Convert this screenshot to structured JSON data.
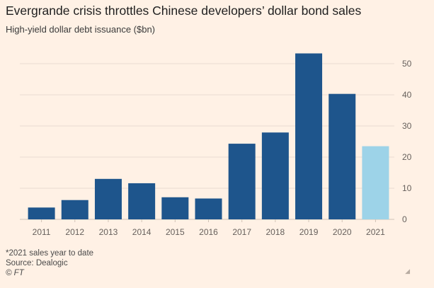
{
  "header": {
    "title": "Evergrande crisis throttles Chinese developers’ dollar bond sales",
    "subtitle": "High-yield dollar debt issuance ($bn)"
  },
  "footer": {
    "note": "*2021 sales year to date",
    "source": "Source: Dealogic",
    "credit": "© FT"
  },
  "colors": {
    "background": "#fff1e5",
    "bar": "#1e558c",
    "bar_highlight": "#9dd3e8",
    "grid": "#e9dcd1",
    "tick_text": "#66605c"
  },
  "chart_data": {
    "type": "bar",
    "title": "Evergrande crisis throttles Chinese developers’ dollar bond sales",
    "subtitle": "High-yield dollar debt issuance ($bn)",
    "categories": [
      "2011",
      "2012",
      "2013",
      "2014",
      "2015",
      "2016",
      "2017",
      "2018",
      "2019",
      "2020",
      "2021"
    ],
    "values": [
      3.8,
      6.2,
      13.0,
      11.6,
      7.1,
      6.7,
      24.3,
      27.9,
      53.3,
      40.3,
      23.5
    ],
    "highlight_index": 10,
    "yticks": [
      0,
      10,
      20,
      30,
      40,
      50
    ],
    "ylim": [
      0,
      55
    ],
    "y_axis_side": "right",
    "grid": true
  }
}
